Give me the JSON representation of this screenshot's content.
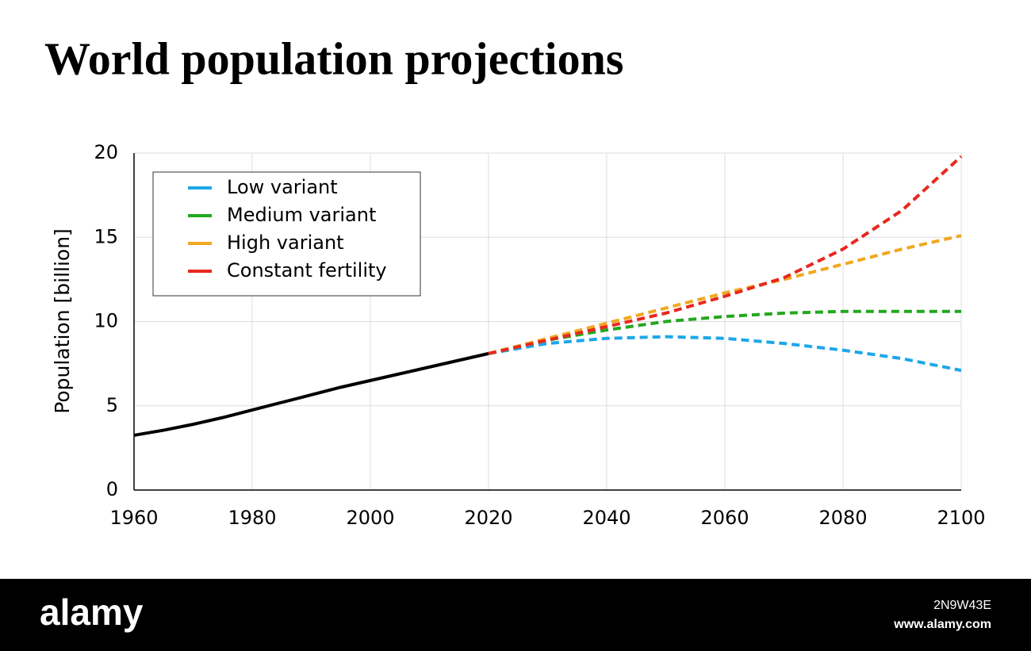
{
  "chart_data": {
    "type": "line",
    "title": "World population projections",
    "ylabel": "Population [billion]",
    "xlim": [
      1960,
      2100
    ],
    "xticks": [
      1960,
      1980,
      2000,
      2020,
      2040,
      2060,
      2080,
      2100
    ],
    "ylim": [
      0,
      20
    ],
    "yticks": [
      0,
      5,
      10,
      15,
      20
    ],
    "grid": true,
    "legend": "upper left",
    "series": [
      {
        "color": "#000000",
        "dashed": false,
        "x": [
          1960,
          1965,
          1970,
          1975,
          1980,
          1985,
          1990,
          1995,
          2000,
          2005,
          2010,
          2015,
          2020
        ],
        "values": [
          3.25,
          3.55,
          3.9,
          4.3,
          4.75,
          5.2,
          5.65,
          6.1,
          6.5,
          6.9,
          7.3,
          7.7,
          8.1
        ]
      },
      {
        "name": "Low variant",
        "color": "#1ea7e8",
        "dashed": true,
        "x": [
          2020,
          2030,
          2040,
          2050,
          2060,
          2070,
          2080,
          2090,
          2100
        ],
        "values": [
          8.1,
          8.7,
          9.0,
          9.1,
          9.0,
          8.7,
          8.3,
          7.8,
          7.1
        ]
      },
      {
        "name": "Medium variant",
        "color": "#22a81e",
        "dashed": true,
        "x": [
          2020,
          2030,
          2040,
          2050,
          2060,
          2070,
          2080,
          2090,
          2100
        ],
        "values": [
          8.1,
          8.9,
          9.5,
          10.0,
          10.3,
          10.5,
          10.6,
          10.6,
          10.6
        ]
      },
      {
        "name": "High variant",
        "color": "#f0a81e",
        "dashed": true,
        "x": [
          2020,
          2030,
          2040,
          2050,
          2060,
          2070,
          2080,
          2090,
          2100
        ],
        "values": [
          8.1,
          9.0,
          9.9,
          10.8,
          11.7,
          12.5,
          13.4,
          14.3,
          15.1
        ]
      },
      {
        "name": "Constant fertility",
        "color": "#e8281e",
        "dashed": true,
        "x": [
          2020,
          2030,
          2040,
          2050,
          2060,
          2070,
          2080,
          2090,
          2100
        ],
        "values": [
          8.1,
          8.9,
          9.7,
          10.5,
          11.5,
          12.6,
          14.3,
          16.6,
          19.8
        ]
      }
    ]
  },
  "watermark": {
    "logo": "alamy",
    "id": "2N9W43E",
    "url": "www.alamy.com"
  }
}
